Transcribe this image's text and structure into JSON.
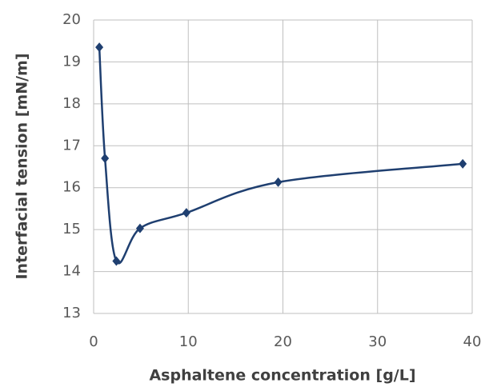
{
  "chart_data": {
    "type": "line",
    "x_label": "Asphaltene concentration [g/L]",
    "y_label": "Interfacial tension [mN/m]",
    "series": [
      {
        "x": [
          0.6,
          1.2,
          2.4,
          4.9,
          9.8,
          19.5,
          39
        ],
        "values": [
          19.35,
          16.7,
          14.25,
          15.03,
          15.4,
          16.13,
          16.57
        ],
        "color": "#1f3f70"
      }
    ],
    "xlim": [
      0,
      40
    ],
    "xticks": [
      0,
      10,
      20,
      30,
      40
    ],
    "ylim": [
      13,
      20
    ],
    "yticks": [
      13,
      14,
      15,
      16,
      17,
      18,
      19,
      20
    ],
    "grid": true,
    "smooth": true
  }
}
